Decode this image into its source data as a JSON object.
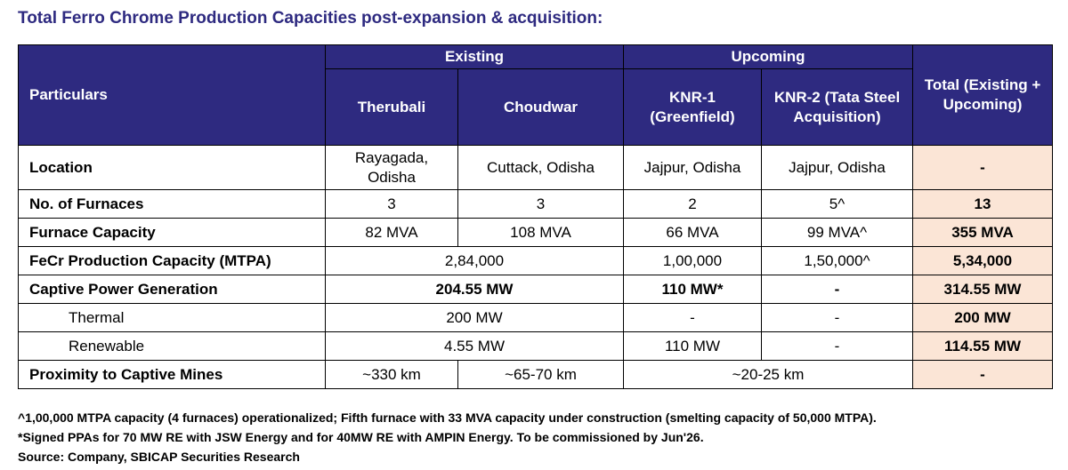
{
  "title": "Total Ferro Chrome Production Capacities post-expansion & acquisition:",
  "header": {
    "particulars": "Particulars",
    "existing": "Existing",
    "upcoming": "Upcoming",
    "total": "Total (Existing + Upcoming)",
    "therubali": "Therubali",
    "choudwar": "Choudwar",
    "knr1": "KNR-1 (Greenfield)",
    "knr2": "KNR-2 (Tata Steel Acquisition)"
  },
  "rows": {
    "location": {
      "label": "Location",
      "therubali": "Rayagada, Odisha",
      "choudwar": "Cuttack, Odisha",
      "knr1": "Jajpur, Odisha",
      "knr2": "Jajpur, Odisha",
      "total": "-"
    },
    "furnaces": {
      "label": "No. of Furnaces",
      "therubali": "3",
      "choudwar": "3",
      "knr1": "2",
      "knr2": "5^",
      "total": "13"
    },
    "capacity": {
      "label": "Furnace Capacity",
      "therubali": "82 MVA",
      "choudwar": "108 MVA",
      "knr1": "66 MVA",
      "knr2": "99 MVA^",
      "total": "355 MVA"
    },
    "fecr": {
      "label": "FeCr Production Capacity (MTPA)",
      "existing": "2,84,000",
      "knr1": "1,00,000",
      "knr2": "1,50,000^",
      "total": "5,34,000"
    },
    "power": {
      "label": "Captive Power Generation",
      "existing": "204.55 MW",
      "knr1": "110 MW*",
      "knr2": "-",
      "total": "314.55 MW"
    },
    "thermal": {
      "label": "Thermal",
      "existing": "200 MW",
      "knr1": "-",
      "knr2": "-",
      "total": "200 MW"
    },
    "renewable": {
      "label": "Renewable",
      "existing": "4.55 MW",
      "knr1": "110 MW",
      "knr2": "-",
      "total": "114.55 MW"
    },
    "mines": {
      "label": "Proximity to Captive Mines",
      "therubali": "~330 km",
      "choudwar": "~65-70 km",
      "upcoming": "~20-25 km",
      "total": "-"
    }
  },
  "footnotes": [
    "^1,00,000 MTPA capacity (4 furnaces) operationalized; Fifth furnace with 33 MVA capacity under construction (smelting capacity of 50,000 MTPA).",
    "*Signed PPAs for 70 MW RE with JSW Energy and for 40MW RE with AMPIN Energy. To be commissioned by Jun'26.",
    "Source: Company, SBICAP Securities Research"
  ],
  "colors": {
    "header_bg": "#2E2A80",
    "total_bg": "#FBE5D6"
  }
}
